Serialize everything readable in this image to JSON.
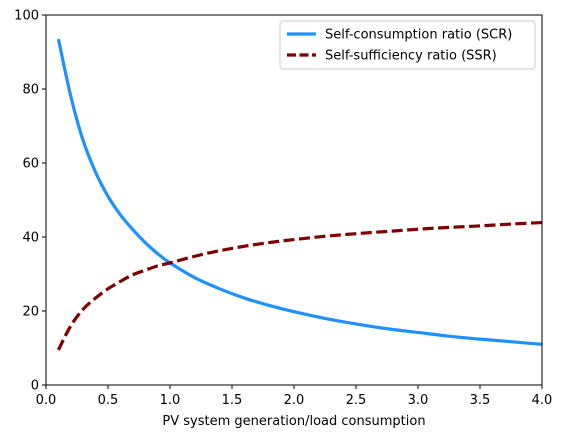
{
  "chart_data": {
    "type": "line",
    "xlabel": "PV system generation/load consumption",
    "ylabel": "",
    "xlim": [
      0.0,
      4.0
    ],
    "ylim": [
      0,
      100
    ],
    "xticks": [
      "0.0",
      "0.5",
      "1.0",
      "1.5",
      "2.0",
      "2.5",
      "3.0",
      "3.5",
      "4.0"
    ],
    "yticks": [
      "0",
      "20",
      "40",
      "60",
      "80",
      "100"
    ],
    "grid": false,
    "legend_position": "top-right",
    "x": [
      0.1,
      0.2,
      0.3,
      0.4,
      0.5,
      0.6,
      0.7,
      0.8,
      0.9,
      1.0,
      1.2,
      1.4,
      1.6,
      1.8,
      2.0,
      2.25,
      2.5,
      2.75,
      3.0,
      3.25,
      3.5,
      3.75,
      4.0
    ],
    "series": [
      {
        "name": "Self-consumption ratio (SCR)",
        "color": "#1e90ff",
        "style": "solid",
        "values": [
          93.5,
          78.0,
          66.0,
          57.5,
          51.0,
          46.0,
          42.0,
          38.5,
          35.5,
          33.0,
          29.0,
          26.0,
          23.5,
          21.5,
          19.8,
          18.0,
          16.5,
          15.2,
          14.2,
          13.2,
          12.4,
          11.7,
          11.0
        ]
      },
      {
        "name": "Self-sufficiency ratio (SSR)",
        "color": "#800000",
        "style": "dashed",
        "values": [
          9.5,
          16.0,
          20.5,
          23.5,
          26.0,
          28.0,
          29.8,
          31.0,
          32.2,
          33.0,
          34.8,
          36.3,
          37.5,
          38.5,
          39.3,
          40.2,
          40.9,
          41.5,
          42.1,
          42.6,
          43.0,
          43.5,
          43.9
        ]
      }
    ]
  }
}
